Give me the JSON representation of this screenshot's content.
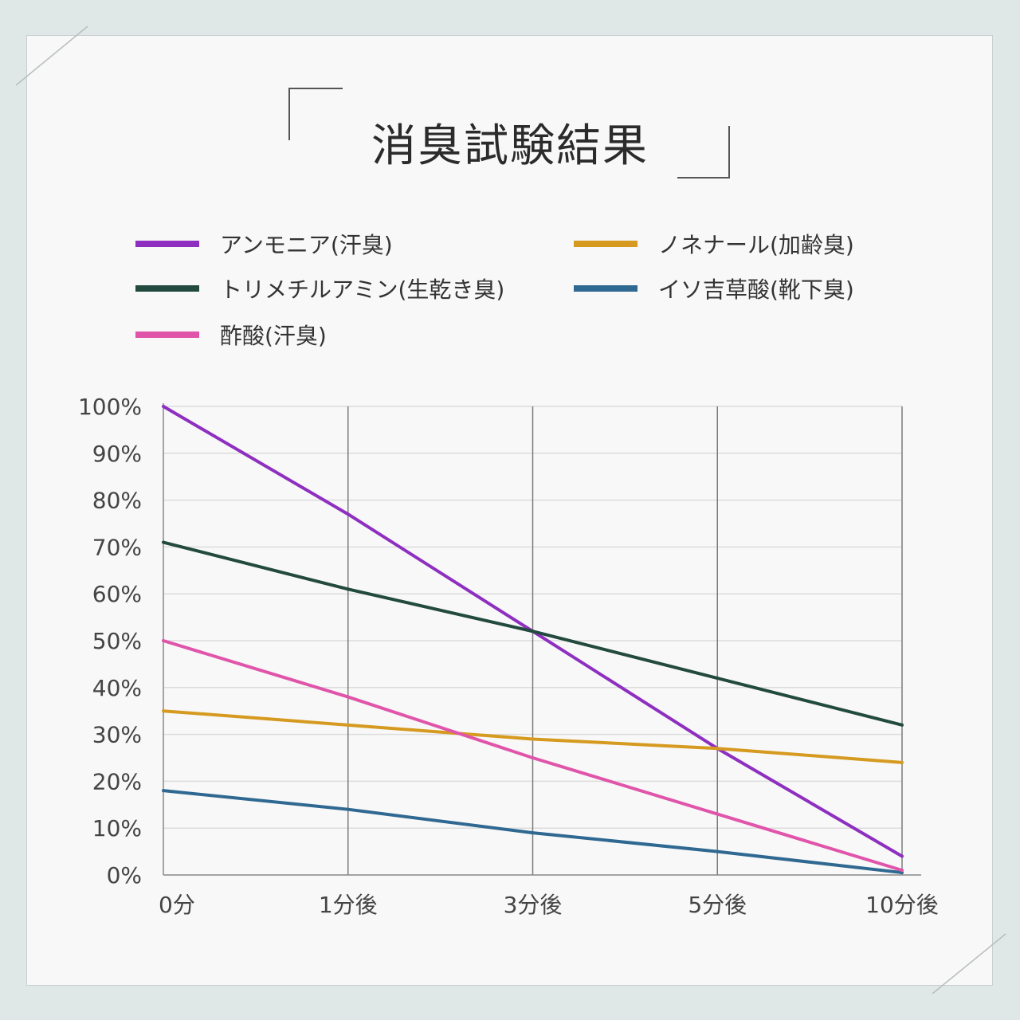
{
  "title": "消臭試験結果",
  "colors": {
    "background": "#dfe8e7",
    "card": "#f8f8f8",
    "grid": "#dcdcdc",
    "vline": "#7a7a7a"
  },
  "chart_data": {
    "type": "line",
    "title": "消臭試験結果",
    "xlabel": "",
    "ylabel": "",
    "categories": [
      "0分",
      "1分後",
      "3分後",
      "5分後",
      "10分後"
    ],
    "ylim": [
      0,
      100
    ],
    "yticks": [
      "0%",
      "10%",
      "20%",
      "30%",
      "40%",
      "50%",
      "60%",
      "70%",
      "80%",
      "90%",
      "100%"
    ],
    "grid": true,
    "legend_position": "top",
    "series": [
      {
        "name": "アンモニア(汗臭)",
        "color": "#8e2fc0",
        "values": [
          100,
          77,
          52,
          27,
          4
        ]
      },
      {
        "name": "ノネナール(加齢臭)",
        "color": "#d59a1f",
        "values": [
          35,
          32,
          29,
          27,
          24
        ]
      },
      {
        "name": "トリメチルアミン(生乾き臭)",
        "color": "#234a3e",
        "values": [
          71,
          61,
          52,
          42,
          32
        ]
      },
      {
        "name": "イソ吉草酸(靴下臭)",
        "color": "#2f6891",
        "values": [
          18,
          14,
          9,
          5,
          0.5
        ]
      },
      {
        "name": "酢酸(汗臭)",
        "color": "#e055aa",
        "values": [
          50,
          38,
          25,
          13,
          1
        ]
      }
    ]
  }
}
